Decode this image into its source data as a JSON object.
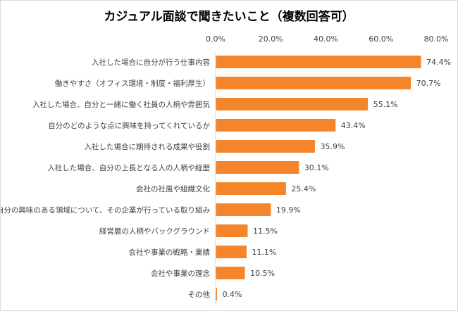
{
  "chart_data": {
    "type": "bar",
    "orientation": "horizontal",
    "title": "カジュアル面談で聞きたいこと（複数回答可）",
    "categories": [
      "入社した場合に自分が行う仕事内容",
      "働きやすさ（オフィス環境・制度・福利厚生）",
      "入社した場合、自分と一緒に働く社員の人柄や雰囲気",
      "自分のどのような点に興味を持ってくれているか",
      "入社した場合に期待される成果や役割",
      "入社した場合、自分の上長となる人の人柄や経歴",
      "会社の社風や組織文化",
      "自分の興味のある領域について、その企業が行っている取り組み",
      "経営層の人柄やバックグラウンド",
      "会社や事業の戦略・業績",
      "会社や事業の理念",
      "その他"
    ],
    "values": [
      74.4,
      70.7,
      55.1,
      43.4,
      35.9,
      30.1,
      25.4,
      19.9,
      11.5,
      11.1,
      10.5,
      0.4
    ],
    "value_labels": [
      "74.4%",
      "70.7%",
      "55.1%",
      "43.4%",
      "35.9%",
      "30.1%",
      "25.4%",
      "19.9%",
      "11.5%",
      "11.1%",
      "10.5%",
      "0.4%"
    ],
    "xticks": [
      0,
      20,
      40,
      60,
      80
    ],
    "xtick_labels": [
      "0.0%",
      "20.0%",
      "40.0%",
      "60.0%",
      "80.0%"
    ],
    "xlim": [
      0,
      80
    ],
    "xaxis_position": "top",
    "grid": false,
    "bar_color": "#F5852A"
  }
}
